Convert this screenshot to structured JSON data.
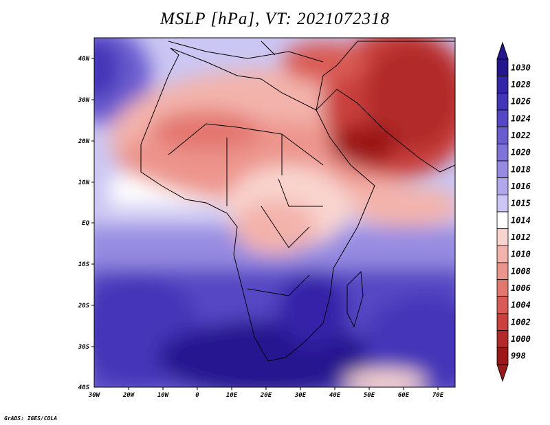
{
  "title": "MSLP [hPa], VT: 2021072318",
  "credit": "GrADS: IGES/COLA",
  "map": {
    "lat_labels": [
      "40N",
      "30N",
      "20N",
      "10N",
      "EQ",
      "10S",
      "20S",
      "30S",
      "40S"
    ],
    "lon_labels": [
      "30W",
      "20W",
      "10W",
      "0",
      "10E",
      "20E",
      "30E",
      "40E",
      "50E",
      "60E",
      "70E"
    ]
  },
  "colorbar": {
    "levels": [
      "1030",
      "1028",
      "1026",
      "1024",
      "1022",
      "1020",
      "1018",
      "1016",
      "1015",
      "1014",
      "1012",
      "1010",
      "1008",
      "1006",
      "1004",
      "1002",
      "1000",
      "998"
    ],
    "colors": [
      "#25168f",
      "#3424a8",
      "#4434b8",
      "#5647c4",
      "#6a5bcf",
      "#7f72d8",
      "#968be1",
      "#b0a8ea",
      "#cbc6f3",
      "#ffffff",
      "#f9d4cf",
      "#f3b3ac",
      "#ec958d",
      "#e37770",
      "#d95b55",
      "#c9403d",
      "#b22a29",
      "#9b1718"
    ]
  }
}
